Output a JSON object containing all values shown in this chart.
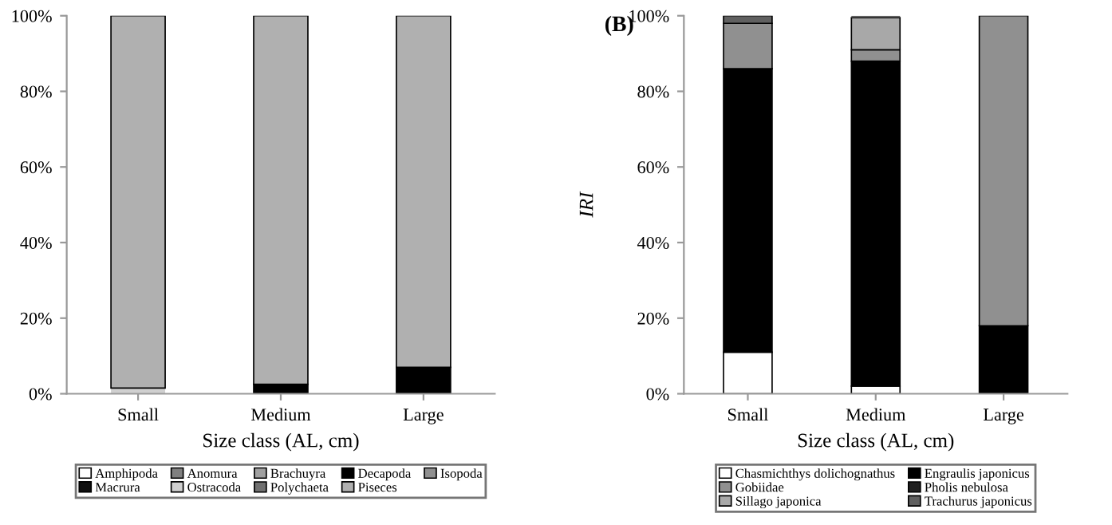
{
  "chart_data": [
    {
      "type": "bar",
      "stacked": true,
      "categories": [
        "Small",
        "Medium",
        "Large"
      ],
      "xlabel": "Size class (AL, cm)",
      "ylim": [
        0,
        100
      ],
      "yticks": [
        {
          "value": 0,
          "label": "0%"
        },
        {
          "value": 20,
          "label": "20%"
        },
        {
          "value": 40,
          "label": "40%"
        },
        {
          "value": 60,
          "label": "60%"
        },
        {
          "value": 80,
          "label": "80%"
        },
        {
          "value": 100,
          "label": "100%"
        }
      ],
      "legend": "bottom",
      "series": [
        {
          "name": "Amphipoda",
          "color": "#ffffff",
          "values": [
            0,
            0,
            0
          ]
        },
        {
          "name": "Anomura",
          "color": "#808080",
          "values": [
            0,
            0,
            0
          ]
        },
        {
          "name": "Brachuyra",
          "color": "#a0a0a0",
          "values": [
            0,
            0,
            0
          ]
        },
        {
          "name": "Decapoda",
          "color": "#000000",
          "values": [
            0,
            2.5,
            7
          ]
        },
        {
          "name": "Isopoda",
          "color": "#909090",
          "values": [
            0,
            0,
            0
          ]
        },
        {
          "name": "Macrura",
          "color": "#101010",
          "values": [
            0,
            0,
            0
          ]
        },
        {
          "name": "Ostracoda",
          "color": "#d0d0d0",
          "values": [
            1.5,
            0,
            0
          ]
        },
        {
          "name": "Polychaeta",
          "color": "#707070",
          "values": [
            0,
            0,
            0
          ]
        },
        {
          "name": "Piseces",
          "color": "#b0b0b0",
          "values": [
            98.5,
            97.5,
            93
          ]
        }
      ]
    },
    {
      "type": "bar",
      "stacked": true,
      "categories": [
        "Small",
        "Medium",
        "Large"
      ],
      "xlabel": "Size class (AL, cm)",
      "ylabel": "IRI",
      "annotations": [
        "(B)"
      ],
      "ylim": [
        0,
        100
      ],
      "yticks": [
        {
          "value": 0,
          "label": "0%"
        },
        {
          "value": 20,
          "label": "20%"
        },
        {
          "value": 40,
          "label": "40%"
        },
        {
          "value": 60,
          "label": "60%"
        },
        {
          "value": 80,
          "label": "80%"
        },
        {
          "value": 100,
          "label": "100%"
        }
      ],
      "legend": "bottom",
      "series": [
        {
          "name": "Chasmichthys dolichognathus",
          "color": "#ffffff",
          "values": [
            11,
            2,
            0
          ]
        },
        {
          "name": "Engraulis japonicus",
          "color": "#000000",
          "values": [
            75,
            86,
            18
          ]
        },
        {
          "name": "Gobiidae",
          "color": "#909090",
          "values": [
            12,
            3,
            82
          ]
        },
        {
          "name": "Pholis nebulosa",
          "color": "#202020",
          "values": [
            0,
            0,
            0
          ]
        },
        {
          "name": "Sillago japonica",
          "color": "#a8a8a8",
          "values": [
            0,
            8.5,
            0
          ]
        },
        {
          "name": "Trachurus japonicus",
          "color": "#606060",
          "values": [
            2,
            0.5,
            0
          ]
        }
      ]
    }
  ]
}
